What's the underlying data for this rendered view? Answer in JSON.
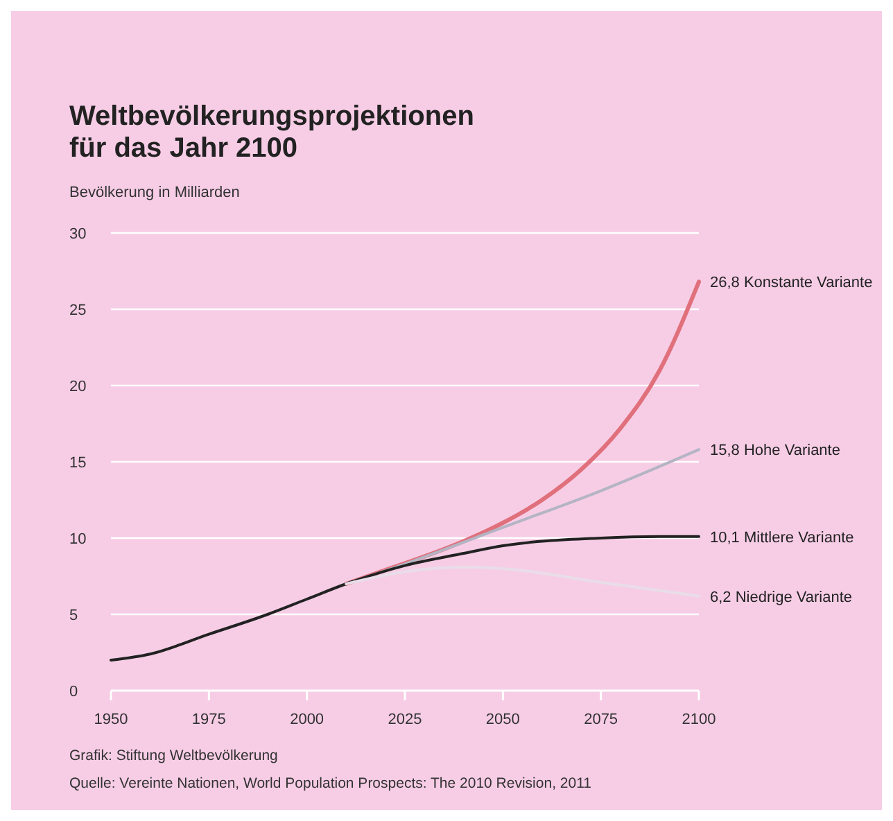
{
  "chart_data": {
    "type": "line",
    "title": "Weltbevölkerungsprojektionen\nfür das Jahr 2100",
    "ylabel": "Bevölkerung in Milliarden",
    "xlim": [
      1950,
      2100
    ],
    "xticks": [
      1950,
      1975,
      2000,
      2025,
      2050,
      2075,
      2100
    ],
    "ylim": [
      0,
      30
    ],
    "yticks": [
      0,
      5,
      10,
      15,
      20,
      25,
      30
    ],
    "grid": "y",
    "series": [
      {
        "name": "Konstante Variante",
        "color": "#e0707c",
        "x": [
          2010,
          2020,
          2030,
          2040,
          2050,
          2060,
          2070,
          2080,
          2090,
          2100
        ],
        "values": [
          7.0,
          7.9,
          8.8,
          9.8,
          11.0,
          12.5,
          14.5,
          17.2,
          21.0,
          26.8
        ],
        "value_labels": [
          null,
          null,
          null,
          null,
          null,
          null,
          null,
          null,
          null,
          "26,8"
        ]
      },
      {
        "name": "Hohe Variante",
        "color": "#b4b4c4",
        "x": [
          2010,
          2025,
          2050,
          2075,
          2100
        ],
        "values": [
          7.0,
          8.3,
          10.7,
          13.1,
          15.8
        ],
        "value_labels": [
          null,
          null,
          null,
          null,
          "15,8"
        ]
      },
      {
        "name": "Mittlere Variante",
        "color": "#222222",
        "x": [
          1950,
          1960,
          1975,
          1990,
          2000,
          2010,
          2025,
          2040,
          2050,
          2075,
          2090,
          2100
        ],
        "values": [
          2.0,
          2.4,
          3.7,
          5.0,
          6.0,
          7.0,
          8.2,
          9.0,
          9.5,
          10.0,
          10.1,
          10.1
        ],
        "value_labels": [
          null,
          null,
          null,
          null,
          null,
          null,
          null,
          null,
          null,
          null,
          null,
          "10,1"
        ]
      },
      {
        "name": "Niedrige Variante",
        "color": "#e8dde8",
        "x": [
          2010,
          2025,
          2040,
          2050,
          2075,
          2100
        ],
        "values": [
          7.0,
          7.8,
          8.1,
          8.0,
          7.1,
          6.2
        ],
        "value_labels": [
          null,
          null,
          null,
          null,
          null,
          "6,2"
        ]
      }
    ],
    "annotations": [
      "Grafik: Stiftung Weltbevölkerung",
      "Quelle: Vereinte Nationen, World Population Prospects: The 2010 Revision, 2011"
    ]
  }
}
